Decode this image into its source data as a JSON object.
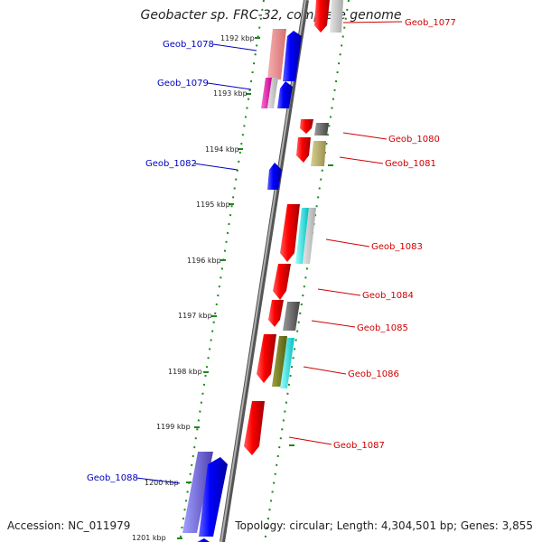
{
  "title": "Geobacter sp. FRC-32, complete genome",
  "footer": {
    "accession": "Accession: NC_011979",
    "topology": "Topology: circular; Length: 4,304,501 bp; Genes: 3,855"
  },
  "kbp_ticks": [
    "1192 kbp",
    "1193 kbp",
    "1194 kbp",
    "1195 kbp",
    "1196 kbp",
    "1197 kbp",
    "1198 kbp",
    "1199 kbp",
    "1200 kbp",
    "1201 kbp"
  ],
  "genes": {
    "Geob_1077": "Geob_1077",
    "Geob_1078": "Geob_1078",
    "Geob_1079": "Geob_1079",
    "Geob_1080": "Geob_1080",
    "Geob_1081": "Geob_1081",
    "Geob_1082": "Geob_1082",
    "Geob_1083": "Geob_1083",
    "Geob_1084": "Geob_1084",
    "Geob_1085": "Geob_1085",
    "Geob_1086": "Geob_1086",
    "Geob_1087": "Geob_1087",
    "Geob_1088": "Geob_1088"
  },
  "colors": {
    "forward_strand": "#ff0000",
    "reverse_strand": "#0000ff",
    "backbone": "#888888",
    "dotted_track": "#1a8a1a",
    "label_forward": "#d00000",
    "label_reverse": "#0000c0"
  }
}
